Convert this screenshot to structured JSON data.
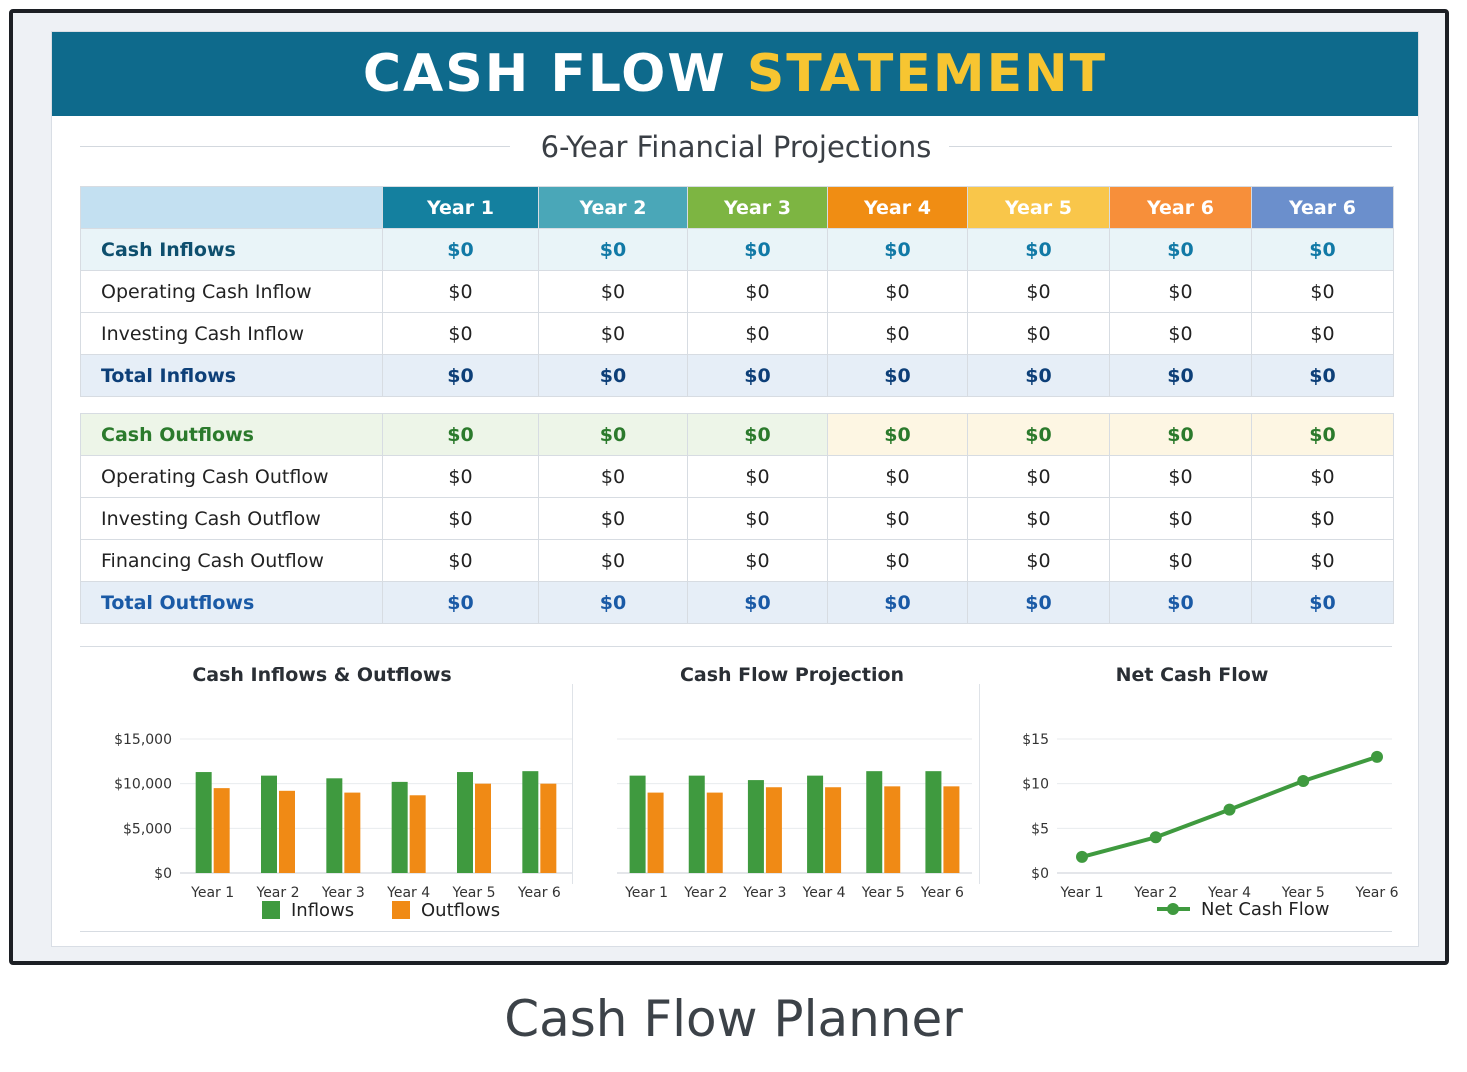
{
  "header": {
    "title_main": "CASH FLOW",
    "title_accent": "STATEMENT",
    "subtitle": "6-Year Financial Projections"
  },
  "table": {
    "columns": [
      {
        "label": "Year 1",
        "color": "#14809f"
      },
      {
        "label": "Year 2",
        "color": "#4aa7b8"
      },
      {
        "label": "Year 3",
        "color": "#7db542"
      },
      {
        "label": "Year 4",
        "color": "#f08d13"
      },
      {
        "label": "Year 5",
        "color": "#f9c64a"
      },
      {
        "label": "Year 6",
        "color": "#f78f3a"
      },
      {
        "label": "Year 6",
        "color": "#6b8fcc"
      }
    ],
    "header_blank_color": "#c3e0f1",
    "inflows": {
      "section": {
        "label": "Cash Inflows",
        "values": [
          "$0",
          "$0",
          "$0",
          "$0",
          "$0",
          "$0",
          "$0"
        ]
      },
      "rows": [
        {
          "label": "Operating Cash Inflow",
          "values": [
            "$0",
            "$0",
            "$0",
            "$0",
            "$0",
            "$0",
            "$0"
          ]
        },
        {
          "label": "Investing Cash Inflow",
          "values": [
            "$0",
            "$0",
            "$0",
            "$0",
            "$0",
            "$0",
            "$0"
          ]
        }
      ],
      "total": {
        "label": "Total Inflows",
        "values": [
          "$0",
          "$0",
          "$0",
          "$0",
          "$0",
          "$0",
          "$0"
        ]
      }
    },
    "outflows": {
      "section": {
        "label": "Cash Outflows",
        "values": [
          "$0",
          "$0",
          "$0",
          "$0",
          "$0",
          "$0",
          "$0"
        ]
      },
      "rows": [
        {
          "label": "Operating Cash Outflow",
          "values": [
            "$0",
            "$0",
            "$0",
            "$0",
            "$0",
            "$0",
            "$0"
          ]
        },
        {
          "label": "Investing Cash Outflow",
          "values": [
            "$0",
            "$0",
            "$0",
            "$0",
            "$0",
            "$0",
            "$0"
          ]
        },
        {
          "label": "Financing Cash Outflow",
          "values": [
            "$0",
            "$0",
            "$0",
            "$0",
            "$0",
            "$0",
            "$0"
          ]
        }
      ],
      "total": {
        "label": "Total Outflows",
        "values": [
          "$0",
          "$0",
          "$0",
          "$0",
          "$0",
          "$0",
          "$0"
        ]
      }
    }
  },
  "chart_data": [
    {
      "type": "bar",
      "title": "Cash Inflows & Outflows",
      "categories": [
        "Year 1",
        "Year 2",
        "Year 3",
        "Year 4",
        "Year 5",
        "Year 6"
      ],
      "series": [
        {
          "name": "Inflows",
          "color": "#3f9a3f",
          "values": [
            11300,
            10900,
            10600,
            10200,
            11300,
            11400
          ]
        },
        {
          "name": "Outflows",
          "color": "#f08a15",
          "values": [
            9500,
            9200,
            9000,
            8700,
            10000,
            10000
          ]
        }
      ],
      "ylim": [
        0,
        15000
      ],
      "yticks": [
        "$0",
        "$5,000",
        "$10,000",
        "$15,000"
      ],
      "legend": "bottom"
    },
    {
      "type": "bar",
      "title": "Cash Flow Projection",
      "categories": [
        "Year 1",
        "Year 2",
        "Year 3",
        "Year 4",
        "Year 5",
        "Year 6"
      ],
      "series": [
        {
          "name": "",
          "color": "#3f9a3f",
          "values": [
            10900,
            10900,
            10400,
            10900,
            11400,
            11400
          ]
        },
        {
          "name": "",
          "color": "#f08a15",
          "values": [
            9000,
            9000,
            9600,
            9600,
            9700,
            9700
          ]
        }
      ],
      "ylim": [
        0,
        15000
      ]
    },
    {
      "type": "line",
      "title": "Net Cash Flow",
      "categories": [
        "Year 1",
        "Year 2",
        "Year 4",
        "Year 5",
        "Year 6"
      ],
      "series": [
        {
          "name": "Net Cash Flow",
          "color": "#3f9a3f",
          "values": [
            1.8,
            4.0,
            7.1,
            10.3,
            13.0
          ]
        }
      ],
      "ylim": [
        0,
        15
      ],
      "yticks": [
        "$0",
        "$5",
        "$10",
        "$15"
      ],
      "legend": "bottom"
    }
  ],
  "caption": "Cash Flow Planner"
}
